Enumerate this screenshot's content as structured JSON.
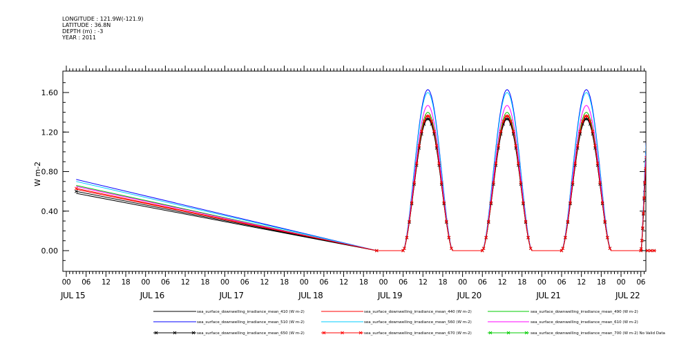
{
  "header": {
    "longitude": "LONGITUDE : 121.9W(-121.9)",
    "latitude": "LATITUDE : 36.8N",
    "depth": "DEPTH (m) : -3",
    "year": "YEAR : 2011"
  },
  "chart_data": {
    "type": "line",
    "ylabel": "W m-2",
    "ylim": [
      -0.2,
      1.82
    ],
    "yticks": [
      0.0,
      0.4,
      0.8,
      1.2,
      1.6
    ],
    "ytick_labels": [
      "0.00",
      "0.40",
      "0.80",
      "1.20",
      "1.60"
    ],
    "xlim": [
      0,
      178
    ],
    "x_unit": "hours from JUL 15 00:00",
    "xtick_labels": [
      "00",
      "06",
      "12",
      "18",
      "00",
      "06",
      "12",
      "18",
      "00",
      "06",
      "12",
      "18",
      "00",
      "06",
      "12",
      "18",
      "00",
      "06",
      "12",
      "18",
      "00",
      "06",
      "12",
      "18",
      "00",
      "06",
      "12",
      "18",
      "00",
      "06"
    ],
    "day_labels": [
      "JUL 15",
      "JUL 16",
      "JUL 17",
      "JUL 18",
      "JUL 19",
      "JUL 20",
      "JUL 21",
      "JUL 22"
    ],
    "grid": false,
    "legend_position": "bottom",
    "daylight": {
      "gap_start_hour": 3,
      "gap_end_hour": 94,
      "days": [
        {
          "rise": 102,
          "peak": 109.5,
          "set": 117,
          "amp": 1.0
        },
        {
          "rise": 126,
          "peak": 133.5,
          "set": 141,
          "amp": 1.0
        },
        {
          "rise": 150,
          "peak": 157.5,
          "set": 165,
          "amp": 1.0
        },
        {
          "rise": 174,
          "peak": 176.2,
          "set": 178.4,
          "amp": 0.78
        }
      ]
    },
    "series": [
      {
        "name": "sea_surface_downwelling_irradiance_mean_410 (W m-2)",
        "color": "#000000",
        "marker": "none",
        "start": 0.58,
        "peak": 1.33
      },
      {
        "name": "sea_surface_downwelling_irradiance_mean_440 (W m-2)",
        "color": "#ff0000",
        "marker": "none",
        "start": 0.62,
        "peak": 1.36
      },
      {
        "name": "sea_surface_downwelling_irradiance_mean_490 (W m-2)",
        "color": "#00cc00",
        "marker": "none",
        "start": 0.66,
        "peak": 1.4
      },
      {
        "name": "sea_surface_downwelling_irradiance_mean_510 (W m-2)",
        "color": "#0000ff",
        "marker": "none",
        "start": 0.72,
        "peak": 1.63
      },
      {
        "name": "sea_surface_downwelling_irradiance_mean_560 (W m-2)",
        "color": "#00ccff",
        "marker": "none",
        "start": 0.7,
        "peak": 1.6
      },
      {
        "name": "sea_surface_downwelling_irradiance_mean_610 (W m-2)",
        "color": "#ff00ff",
        "marker": "none",
        "start": 0.65,
        "peak": 1.47
      },
      {
        "name": "sea_surface_downwelling_irradiance_mean_650 (W m-2)",
        "color": "#000000",
        "marker": "x",
        "start": 0.6,
        "peak": 1.34
      },
      {
        "name": "sea_surface_downwelling_irradiance_mean_670 (W m-2)",
        "color": "#ff0000",
        "marker": "x",
        "start": 0.63,
        "peak": 1.37
      },
      {
        "name": "sea_surface_downwelling_irradiance_mean_700 (W m-2) No Valid Data",
        "color": "#00cc00",
        "marker": "x",
        "start": null,
        "peak": null
      }
    ]
  }
}
